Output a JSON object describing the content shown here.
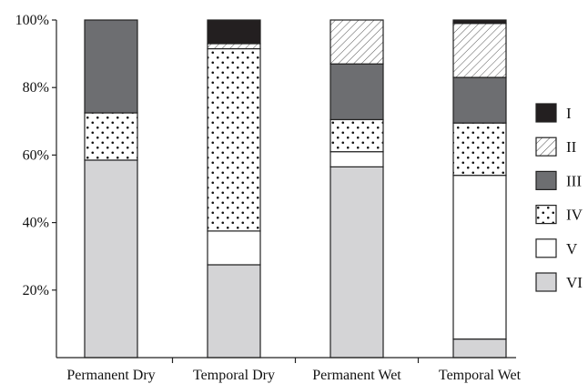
{
  "chart_data": {
    "type": "bar",
    "stacked": true,
    "normalized": true,
    "title": "",
    "xlabel": "",
    "ylabel": "",
    "ylim": [
      0,
      100
    ],
    "y_ticks": [
      20,
      40,
      60,
      80,
      100
    ],
    "y_tick_labels": [
      "20%",
      "40%",
      "60%",
      "80%",
      "100%"
    ],
    "categories": [
      "Permanent Dry",
      "Temporal Dry",
      "Permanent Wet",
      "Temporal Wet"
    ],
    "series": [
      {
        "name": "VI",
        "style": "light-gray",
        "color": "#d4d4d6",
        "values": [
          58.5,
          27.5,
          56.5,
          5.5
        ]
      },
      {
        "name": "V",
        "style": "white",
        "color": "#ffffff",
        "values": [
          0,
          10,
          4.5,
          48.5
        ]
      },
      {
        "name": "IV",
        "style": "dotted",
        "color": "#ffffff",
        "values": [
          14,
          54,
          9.5,
          15.5
        ]
      },
      {
        "name": "III",
        "style": "dark-gray",
        "color": "#6d6e71",
        "values": [
          27.5,
          0,
          16.5,
          13.5
        ]
      },
      {
        "name": "II",
        "style": "hatched",
        "color": "#ffffff",
        "values": [
          0,
          1.5,
          13,
          16
        ]
      },
      {
        "name": "I",
        "style": "black",
        "color": "#231f20",
        "values": [
          0,
          7,
          0,
          1
        ]
      }
    ],
    "legend": {
      "placement": "right",
      "order": [
        "I",
        "II",
        "III",
        "IV",
        "V",
        "VI"
      ]
    },
    "grid": false
  }
}
